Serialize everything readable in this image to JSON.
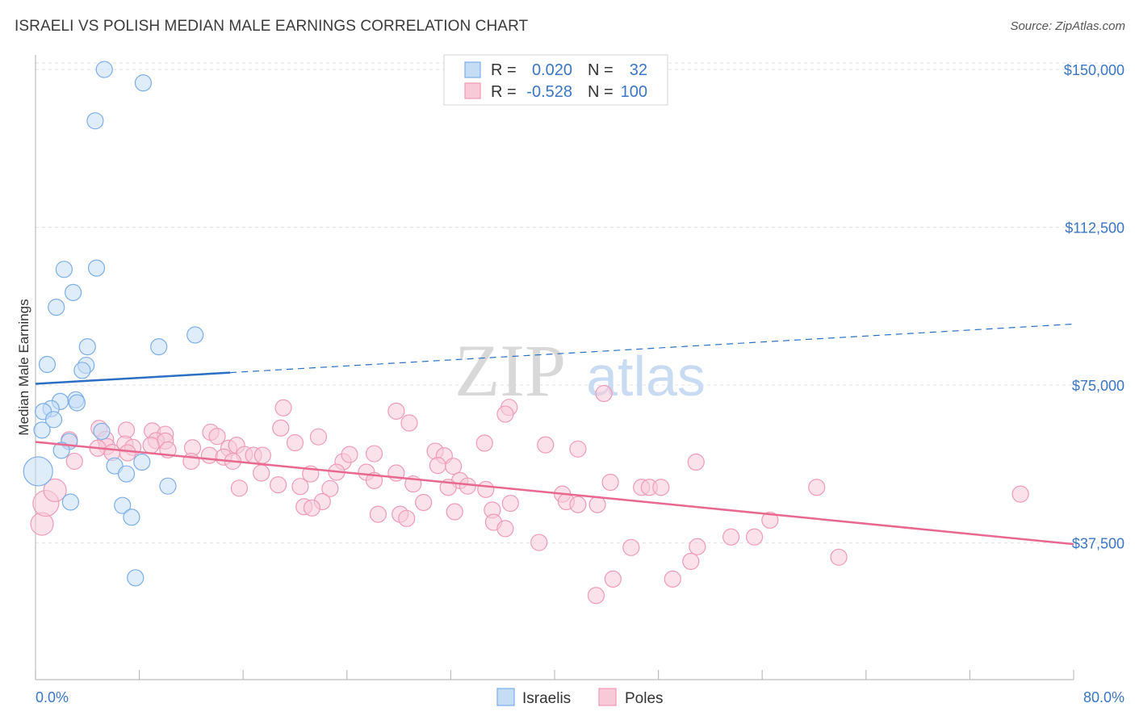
{
  "title": "ISRAELI VS POLISH MEDIAN MALE EARNINGS CORRELATION CHART",
  "source": "Source: ZipAtlas.com",
  "watermark": {
    "zip": "ZIP",
    "atlas": "atlas"
  },
  "chart_data": {
    "type": "scatter",
    "title": "ISRAELI VS POLISH MEDIAN MALE EARNINGS CORRELATION CHART",
    "xlabel": "",
    "ylabel": "Median Male Earnings",
    "xlim": [
      0,
      80
    ],
    "ylim": [
      5000,
      155000
    ],
    "x_tick_labels": [
      "0.0%",
      "80.0%"
    ],
    "y_ticks": [
      37500,
      75000,
      112500,
      150000
    ],
    "y_tick_labels": [
      "$37,500",
      "$75,000",
      "$112,500",
      "$150,000"
    ],
    "grid": true,
    "legend_position": "top-center",
    "colors": {
      "israelis": "#7aaee8",
      "israelis_fill": "#c5dcf5",
      "israelis_line": "#2b6fc4",
      "poles": "#ef9ab5",
      "poles_fill": "#f8cad8",
      "poles_line": "#e8688f"
    },
    "stats": [
      {
        "series": "Israelis",
        "r_label": "R =",
        "r_value": "0.020",
        "n_label": "N =",
        "n_value": "32"
      },
      {
        "series": "Poles",
        "r_label": "R =",
        "r_value": "-0.528",
        "n_label": "N =",
        "n_value": "100"
      }
    ],
    "series": [
      {
        "name": "Israelis",
        "trend": {
          "x0": 0,
          "y0": 75300,
          "x_solid_end": 15,
          "x1": 80,
          "y1": 89500
        },
        "points": [
          [
            5.3,
            150000
          ],
          [
            8.3,
            146800
          ],
          [
            4.6,
            137800
          ],
          [
            2.2,
            102500
          ],
          [
            4.7,
            102800
          ],
          [
            2.9,
            97000
          ],
          [
            1.6,
            93500
          ],
          [
            12.3,
            86900
          ],
          [
            4.0,
            84100
          ],
          [
            9.5,
            84100
          ],
          [
            0.9,
            79900
          ],
          [
            3.9,
            79700
          ],
          [
            3.6,
            78500
          ],
          [
            3.1,
            71500
          ],
          [
            1.9,
            71100
          ],
          [
            1.2,
            69400
          ],
          [
            0.6,
            68700
          ],
          [
            3.2,
            70800
          ],
          [
            1.4,
            66800
          ],
          [
            0.5,
            64300
          ],
          [
            5.1,
            64000
          ],
          [
            2.6,
            61600
          ],
          [
            2.0,
            59500
          ],
          [
            0.2,
            54500
          ],
          [
            6.1,
            55800
          ],
          [
            8.2,
            56700
          ],
          [
            7.0,
            53900
          ],
          [
            10.2,
            51000
          ],
          [
            2.7,
            47200
          ],
          [
            6.7,
            46400
          ],
          [
            7.4,
            43600
          ],
          [
            7.7,
            29200
          ]
        ],
        "sizes": [
          10,
          10,
          10,
          10,
          10,
          10,
          10,
          10,
          10,
          10,
          10,
          10,
          10,
          10,
          10,
          10,
          10,
          10,
          10,
          10,
          10,
          10,
          10,
          18,
          10,
          10,
          10,
          10,
          10,
          10,
          10,
          10
        ]
      },
      {
        "name": "Poles",
        "trend": {
          "x0": 0,
          "y0": 61500,
          "x1": 80,
          "y1": 37200
        },
        "points": [
          [
            43.8,
            73000
          ],
          [
            19.1,
            69600
          ],
          [
            27.8,
            68800
          ],
          [
            36.5,
            69700
          ],
          [
            36.2,
            68100
          ],
          [
            28.8,
            66000
          ],
          [
            18.9,
            64800
          ],
          [
            7.0,
            64300
          ],
          [
            9.0,
            64100
          ],
          [
            13.5,
            63800
          ],
          [
            10.0,
            63300
          ],
          [
            14.0,
            62800
          ],
          [
            21.8,
            62700
          ],
          [
            4.9,
            64700
          ],
          [
            2.6,
            62000
          ],
          [
            5.4,
            62100
          ],
          [
            9.3,
            61800
          ],
          [
            10.0,
            61700
          ],
          [
            6.9,
            61000
          ],
          [
            5.5,
            60400
          ],
          [
            7.5,
            60200
          ],
          [
            4.8,
            60000
          ],
          [
            8.9,
            60700
          ],
          [
            12.1,
            60100
          ],
          [
            14.9,
            60000
          ],
          [
            15.5,
            60700
          ],
          [
            20.0,
            61300
          ],
          [
            10.2,
            59600
          ],
          [
            5.9,
            59000
          ],
          [
            7.1,
            58900
          ],
          [
            13.4,
            58300
          ],
          [
            14.5,
            57900
          ],
          [
            16.1,
            58500
          ],
          [
            16.8,
            58300
          ],
          [
            17.5,
            58300
          ],
          [
            15.2,
            56900
          ],
          [
            12.0,
            56900
          ],
          [
            3.0,
            56900
          ],
          [
            23.7,
            56800
          ],
          [
            24.2,
            58500
          ],
          [
            26.1,
            58700
          ],
          [
            30.8,
            59300
          ],
          [
            31.5,
            58200
          ],
          [
            34.6,
            61200
          ],
          [
            39.3,
            60800
          ],
          [
            41.8,
            59800
          ],
          [
            50.9,
            56700
          ],
          [
            23.2,
            54300
          ],
          [
            31.0,
            55900
          ],
          [
            32.2,
            55700
          ],
          [
            21.2,
            53900
          ],
          [
            25.5,
            54300
          ],
          [
            17.4,
            54100
          ],
          [
            27.8,
            54100
          ],
          [
            32.7,
            52300
          ],
          [
            26.1,
            52300
          ],
          [
            29.1,
            51500
          ],
          [
            33.3,
            51000
          ],
          [
            34.7,
            50200
          ],
          [
            18.7,
            51300
          ],
          [
            20.4,
            50900
          ],
          [
            22.7,
            50400
          ],
          [
            31.8,
            50700
          ],
          [
            15.7,
            50500
          ],
          [
            40.6,
            49100
          ],
          [
            44.3,
            51900
          ],
          [
            46.7,
            50700
          ],
          [
            47.3,
            50700
          ],
          [
            48.2,
            50700
          ],
          [
            60.2,
            50700
          ],
          [
            75.9,
            49100
          ],
          [
            22.1,
            47300
          ],
          [
            29.9,
            47100
          ],
          [
            36.6,
            46900
          ],
          [
            40.9,
            47300
          ],
          [
            41.8,
            46600
          ],
          [
            43.3,
            46600
          ],
          [
            20.7,
            46100
          ],
          [
            21.3,
            45800
          ],
          [
            35.2,
            45300
          ],
          [
            26.4,
            44300
          ],
          [
            28.1,
            44300
          ],
          [
            28.6,
            43300
          ],
          [
            32.3,
            44900
          ],
          [
            35.3,
            42400
          ],
          [
            36.2,
            40900
          ],
          [
            56.6,
            42900
          ],
          [
            53.6,
            38900
          ],
          [
            55.4,
            38900
          ],
          [
            38.8,
            37600
          ],
          [
            45.9,
            36400
          ],
          [
            51.0,
            36600
          ],
          [
            50.5,
            33100
          ],
          [
            61.9,
            34100
          ],
          [
            44.5,
            28900
          ],
          [
            49.1,
            28900
          ],
          [
            43.2,
            25000
          ],
          [
            0.5,
            42000
          ],
          [
            0.8,
            46900
          ],
          [
            1.5,
            50000
          ]
        ],
        "sizes": [
          10,
          10,
          10,
          10,
          10,
          10,
          10,
          10,
          10,
          10,
          10,
          10,
          10,
          10,
          10,
          10,
          10,
          10,
          10,
          10,
          10,
          10,
          10,
          10,
          10,
          10,
          10,
          10,
          10,
          10,
          10,
          10,
          10,
          10,
          10,
          10,
          10,
          10,
          10,
          10,
          10,
          10,
          10,
          10,
          10,
          10,
          10,
          10,
          10,
          10,
          10,
          10,
          10,
          10,
          10,
          10,
          10,
          10,
          10,
          10,
          10,
          10,
          10,
          10,
          10,
          10,
          10,
          10,
          10,
          10,
          10,
          10,
          10,
          10,
          10,
          10,
          10,
          10,
          10,
          10,
          10,
          10,
          10,
          10,
          10,
          10,
          10,
          10,
          10,
          10,
          10,
          10,
          10,
          10,
          10,
          10,
          10,
          14,
          16,
          14
        ]
      }
    ]
  },
  "legend": {
    "israelis": "Israelis",
    "poles": "Poles"
  }
}
